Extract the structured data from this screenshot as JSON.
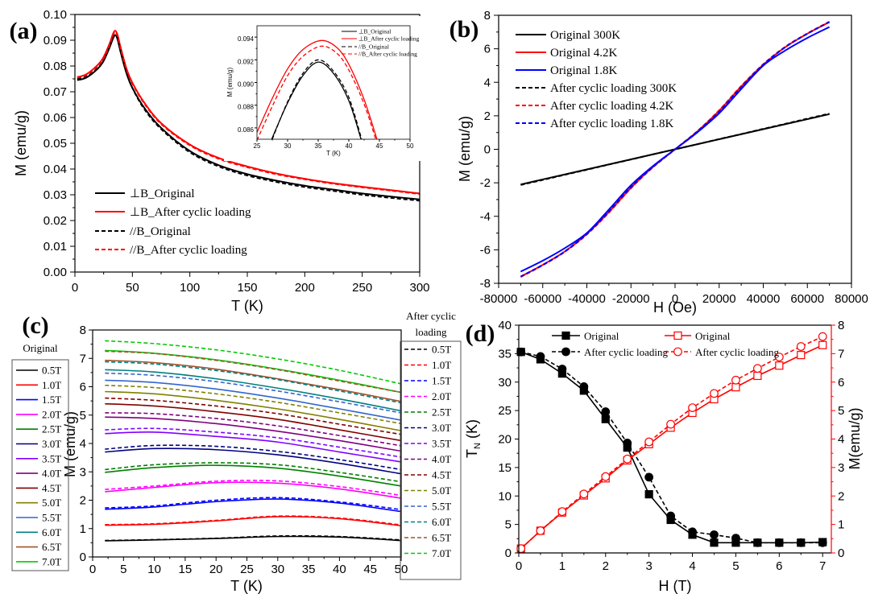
{
  "chart_data": [
    {
      "type": "line",
      "panel_label": "(a)",
      "xlabel": "T (K)",
      "ylabel": "M (emu/g)",
      "xlim": [
        0,
        300
      ],
      "ylim": [
        0,
        0.1
      ],
      "xticks": [
        "0",
        "50",
        "100",
        "150",
        "200",
        "250",
        "300"
      ],
      "yticks": [
        "0.00",
        "0.01",
        "0.02",
        "0.03",
        "0.04",
        "0.05",
        "0.06",
        "0.07",
        "0.08",
        "0.09",
        "0.10"
      ],
      "grid": false,
      "legend_position": "bottom-left",
      "series": [
        {
          "name": "⊥B_Original",
          "color": "#000000",
          "style": "solid",
          "x": [
            2,
            10,
            20,
            25,
            30,
            33,
            35,
            37,
            40,
            45,
            50,
            60,
            75,
            100,
            125,
            150,
            175,
            200,
            225,
            250,
            275,
            300
          ],
          "y": [
            0.0745,
            0.0755,
            0.079,
            0.082,
            0.087,
            0.0905,
            0.092,
            0.0905,
            0.085,
            0.077,
            0.0715,
            0.064,
            0.056,
            0.047,
            0.0415,
            0.038,
            0.0355,
            0.0335,
            0.032,
            0.0305,
            0.0293,
            0.0282
          ]
        },
        {
          "name": "⊥B_After cyclic loading",
          "color": "#ff0000",
          "style": "solid",
          "x": [
            2,
            10,
            20,
            25,
            30,
            33,
            35,
            37,
            40,
            45,
            50,
            60,
            75,
            100,
            125,
            150,
            175,
            200,
            225,
            250,
            275,
            300
          ],
          "y": [
            0.0757,
            0.0768,
            0.0805,
            0.0835,
            0.0885,
            0.0923,
            0.0937,
            0.0922,
            0.0868,
            0.0788,
            0.0735,
            0.066,
            0.0578,
            0.0495,
            0.0443,
            0.041,
            0.0383,
            0.0362,
            0.0345,
            0.0331,
            0.0318,
            0.0305
          ]
        },
        {
          "name": "//B_Original",
          "color": "#000000",
          "style": "dash",
          "x": [
            2,
            10,
            20,
            25,
            30,
            33,
            35,
            37,
            40,
            45,
            50,
            60,
            75,
            100,
            125,
            150,
            175,
            200,
            225,
            250,
            275,
            300
          ],
          "y": [
            0.075,
            0.0758,
            0.0792,
            0.0822,
            0.0872,
            0.0907,
            0.092,
            0.0906,
            0.0852,
            0.0772,
            0.0715,
            0.0635,
            0.0555,
            0.0465,
            0.041,
            0.0375,
            0.035,
            0.033,
            0.0315,
            0.03,
            0.0288,
            0.0277
          ]
        },
        {
          "name": "//B_After cyclic loading",
          "color": "#ff0000",
          "style": "dash",
          "x": [
            2,
            10,
            20,
            25,
            30,
            33,
            35,
            37,
            40,
            45,
            50,
            60,
            75,
            100,
            125,
            150,
            175,
            200,
            225,
            250,
            275,
            300
          ],
          "y": [
            0.0755,
            0.0765,
            0.08,
            0.083,
            0.088,
            0.0918,
            0.0932,
            0.0918,
            0.0864,
            0.0785,
            0.0732,
            0.0657,
            0.0575,
            0.0492,
            0.044,
            0.0407,
            0.038,
            0.036,
            0.0343,
            0.0329,
            0.0316,
            0.0303
          ]
        }
      ],
      "inset": {
        "type": "line",
        "xlabel": "T (K)",
        "ylabel": "M (emu/g)",
        "xlim": [
          25,
          50
        ],
        "ylim": [
          0.085,
          0.095
        ],
        "xticks": [
          "25",
          "30",
          "35",
          "40",
          "45",
          "50"
        ],
        "yticks": [
          "0.086",
          "0.088",
          "0.090",
          "0.092",
          "0.094"
        ],
        "legend_position": "top-right",
        "series": [
          {
            "name": "⊥B_Original",
            "color": "#000000",
            "style": "solid",
            "x": [
              27.4,
              30,
              32.5,
              35,
              37.5,
              40,
              42
            ],
            "y": [
              0.085,
              0.0882,
              0.0906,
              0.0918,
              0.0908,
              0.0884,
              0.085
            ]
          },
          {
            "name": "⊥B_After cyclic loading",
            "color": "#ff0000",
            "style": "solid",
            "x": [
              25,
              27.5,
              30,
              32.5,
              35.5,
              38,
              40,
              42.5,
              44.6
            ],
            "y": [
              0.0856,
              0.0886,
              0.0912,
              0.0929,
              0.0937,
              0.0931,
              0.0916,
              0.0885,
              0.085
            ]
          },
          {
            "name": "//B_Original",
            "color": "#000000",
            "style": "dash",
            "x": [
              27.5,
              30,
              32.5,
              35,
              37.5,
              40,
              42.1
            ],
            "y": [
              0.085,
              0.0883,
              0.0908,
              0.092,
              0.091,
              0.0887,
              0.085
            ]
          },
          {
            "name": "//B_After cyclic loading",
            "color": "#ff0000",
            "style": "dash",
            "x": [
              25,
              27.5,
              30,
              32.5,
              35.5,
              38,
              40,
              42.5,
              44.4
            ],
            "y": [
              0.0849,
              0.0879,
              0.0906,
              0.0923,
              0.0932,
              0.0926,
              0.0911,
              0.0881,
              0.085
            ]
          }
        ]
      }
    },
    {
      "type": "line",
      "panel_label": "(b)",
      "xlabel": "H (Oe)",
      "ylabel": "M (emu/g)",
      "xlim": [
        -80000,
        80000
      ],
      "ylim": [
        -8,
        8
      ],
      "xticks": [
        "-80000",
        "-60000",
        "-40000",
        "-20000",
        "0",
        "20000",
        "40000",
        "60000",
        "80000"
      ],
      "yticks": [
        "-8",
        "-6",
        "-4",
        "-2",
        "0",
        "2",
        "4",
        "6",
        "8"
      ],
      "grid": false,
      "legend_position": "top-left",
      "series": [
        {
          "name": "Original 300K",
          "color": "#000000",
          "style": "solid",
          "x": [
            -70000,
            -60000,
            -50000,
            -40000,
            -30000,
            -20000,
            -10000,
            0,
            10000,
            20000,
            30000,
            40000,
            50000,
            60000,
            70000
          ],
          "y": [
            -2.1,
            -1.8,
            -1.5,
            -1.2,
            -0.9,
            -0.6,
            -0.3,
            0,
            0.3,
            0.6,
            0.9,
            1.2,
            1.5,
            1.8,
            2.1
          ]
        },
        {
          "name": "Original 4.2K",
          "color": "#ff0000",
          "style": "solid",
          "x": [
            -70000,
            -60000,
            -50000,
            -40000,
            -30000,
            -20000,
            -10000,
            0,
            10000,
            20000,
            30000,
            40000,
            50000,
            60000,
            70000
          ],
          "y": [
            -7.6,
            -6.9,
            -6.1,
            -5.05,
            -3.75,
            -2.3,
            -1.05,
            0,
            1.05,
            2.3,
            3.75,
            5.05,
            6.1,
            6.9,
            7.6
          ]
        },
        {
          "name": "Original 1.8K",
          "color": "#0000ff",
          "style": "solid",
          "x": [
            -70000,
            -60000,
            -50000,
            -40000,
            -30000,
            -20000,
            -10000,
            0,
            10000,
            20000,
            30000,
            40000,
            50000,
            60000,
            70000
          ],
          "y": [
            -7.3,
            -6.65,
            -5.9,
            -5.0,
            -3.6,
            -2.15,
            -1.0,
            0,
            1.0,
            2.15,
            3.6,
            5.0,
            5.9,
            6.65,
            7.3
          ]
        },
        {
          "name": "After cyclic loading 300K",
          "color": "#000000",
          "style": "dash",
          "x": [
            -70000,
            -60000,
            -50000,
            -40000,
            -30000,
            -20000,
            -10000,
            0,
            10000,
            20000,
            30000,
            40000,
            50000,
            60000,
            70000
          ],
          "y": [
            -2.13,
            -1.83,
            -1.52,
            -1.22,
            -0.91,
            -0.61,
            -0.3,
            0,
            0.3,
            0.61,
            0.91,
            1.22,
            1.52,
            1.83,
            2.13
          ]
        },
        {
          "name": "After cyclic loading 4.2K",
          "color": "#ff0000",
          "style": "dash",
          "x": [
            -70000,
            -60000,
            -50000,
            -40000,
            -30000,
            -20000,
            -10000,
            0,
            10000,
            20000,
            30000,
            40000,
            50000,
            60000,
            70000
          ],
          "y": [
            -7.62,
            -6.92,
            -6.12,
            -5.08,
            -3.78,
            -2.33,
            -1.07,
            0,
            1.07,
            2.33,
            3.78,
            5.08,
            6.12,
            6.92,
            7.62
          ]
        },
        {
          "name": "After cyclic loading 1.8K",
          "color": "#0000ff",
          "style": "dash",
          "x": [
            -70000,
            -60000,
            -50000,
            -40000,
            -30000,
            -20000,
            -10000,
            0,
            10000,
            20000,
            30000,
            40000,
            50000,
            60000,
            70000
          ],
          "y": [
            -7.6,
            -6.9,
            -6.1,
            -5.05,
            -3.7,
            -2.25,
            -1.05,
            0,
            1.05,
            2.25,
            3.7,
            5.05,
            6.1,
            6.9,
            7.6
          ]
        }
      ]
    },
    {
      "type": "line",
      "panel_label": "(c)",
      "xlabel": "T (K)",
      "ylabel": "M (emu/g)",
      "xlim": [
        0,
        50
      ],
      "ylim": [
        0,
        8
      ],
      "xticks": [
        "0",
        "5",
        "10",
        "15",
        "20",
        "25",
        "30",
        "35",
        "40",
        "45",
        "50"
      ],
      "yticks": [
        "0",
        "1",
        "2",
        "3",
        "4",
        "5",
        "6",
        "7",
        "8"
      ],
      "grid": false,
      "legend_left_title": "Original",
      "legend_right_title_line1": "After cyclic",
      "legend_right_title_line2": "loading",
      "x": [
        2,
        10,
        20,
        30,
        40,
        50
      ],
      "fields": [
        "0.5T",
        "1.0T",
        "1.5T",
        "2.0T",
        "2.5T",
        "3.0T",
        "3.5T",
        "4.0T",
        "4.5T",
        "5.0T",
        "5.5T",
        "6.0T",
        "6.5T",
        "7.0T"
      ],
      "colors": [
        "#000000",
        "#ff0000",
        "#0000ff",
        "#ff00ff",
        "#008000",
        "#000080",
        "#8000ff",
        "#800080",
        "#800000",
        "#808000",
        "#3366cc",
        "#008080",
        "#a0522d",
        "#00cc00"
      ],
      "original": [
        [
          0.57,
          0.6,
          0.65,
          0.72,
          0.7,
          0.58
        ],
        [
          1.12,
          1.15,
          1.27,
          1.42,
          1.35,
          1.1
        ],
        [
          1.68,
          1.76,
          1.95,
          2.04,
          1.9,
          1.6
        ],
        [
          2.3,
          2.45,
          2.62,
          2.6,
          2.4,
          2.07
        ],
        [
          2.98,
          3.15,
          3.23,
          3.13,
          2.85,
          2.5
        ],
        [
          3.7,
          3.82,
          3.78,
          3.6,
          3.3,
          2.93
        ],
        [
          4.35,
          4.4,
          4.25,
          4.05,
          3.7,
          3.35
        ],
        [
          4.93,
          4.88,
          4.7,
          4.43,
          4.1,
          3.73
        ],
        [
          5.4,
          5.32,
          5.12,
          4.85,
          4.48,
          4.1
        ],
        [
          5.83,
          5.75,
          5.52,
          5.22,
          4.85,
          4.45
        ],
        [
          6.23,
          6.15,
          5.92,
          5.6,
          5.22,
          4.82
        ],
        [
          6.6,
          6.52,
          6.28,
          5.95,
          5.57,
          5.15
        ],
        [
          6.93,
          6.85,
          6.62,
          6.28,
          5.9,
          5.48
        ],
        [
          7.28,
          7.18,
          6.95,
          6.62,
          6.23,
          5.8
        ]
      ],
      "after_cyclic_loading": [
        [
          0.58,
          0.61,
          0.66,
          0.74,
          0.72,
          0.6
        ],
        [
          1.14,
          1.17,
          1.29,
          1.44,
          1.37,
          1.13
        ],
        [
          1.73,
          1.8,
          2.0,
          2.09,
          1.94,
          1.67
        ],
        [
          2.38,
          2.5,
          2.67,
          2.68,
          2.48,
          2.17
        ],
        [
          3.08,
          3.25,
          3.32,
          3.25,
          2.98,
          2.65
        ],
        [
          3.8,
          3.93,
          3.9,
          3.72,
          3.43,
          3.08
        ],
        [
          4.48,
          4.53,
          4.4,
          4.2,
          3.87,
          3.52
        ],
        [
          5.08,
          5.05,
          4.88,
          4.62,
          4.28,
          3.92
        ],
        [
          5.6,
          5.52,
          5.32,
          5.05,
          4.68,
          4.32
        ],
        [
          6.05,
          5.97,
          5.75,
          5.45,
          5.08,
          4.7
        ],
        [
          6.48,
          6.4,
          6.18,
          5.85,
          5.47,
          5.08
        ],
        [
          6.88,
          6.8,
          6.57,
          6.25,
          5.85,
          5.43
        ],
        [
          7.25,
          7.17,
          6.93,
          6.6,
          6.2,
          5.8
        ],
        [
          7.62,
          7.52,
          7.3,
          6.98,
          6.58,
          6.1
        ]
      ]
    },
    {
      "type": "line",
      "panel_label": "(d)",
      "xlabel": "H (T)",
      "ylabel_left": "T",
      "ylabel_left_sub": "N",
      "ylabel_left_unit": " (K)",
      "ylabel_right": "M(emu/g)",
      "xlim": [
        0,
        7.2
      ],
      "ylim_left": [
        0,
        40
      ],
      "ylim_right": [
        0,
        8
      ],
      "xticks": [
        "0",
        "1",
        "2",
        "3",
        "4",
        "5",
        "6",
        "7"
      ],
      "yticks_left": [
        "0",
        "5",
        "10",
        "15",
        "20",
        "25",
        "30",
        "35",
        "40"
      ],
      "yticks_right": [
        "0",
        "1",
        "2",
        "3",
        "4",
        "5",
        "6",
        "7",
        "8"
      ],
      "right_axis_color": "#ff0000",
      "grid": false,
      "x": [
        0.05,
        0.5,
        1,
        1.5,
        2,
        2.5,
        3,
        3.5,
        4,
        4.5,
        5,
        5.5,
        6,
        6.5,
        7
      ],
      "series": [
        {
          "name": "Original",
          "axis": "left",
          "color": "#000000",
          "style": "solid",
          "marker": "filled-square",
          "y": [
            35.3,
            34,
            31.5,
            28.5,
            23.5,
            18.5,
            10.3,
            5.8,
            3.2,
            1.8,
            1.8,
            1.8,
            1.8,
            1.8,
            1.9
          ]
        },
        {
          "name": "After cyclic loading",
          "axis": "left",
          "color": "#000000",
          "style": "dash",
          "marker": "filled-circle",
          "y": [
            35.3,
            34.5,
            32.3,
            29.2,
            24.8,
            19.3,
            13.3,
            6.5,
            3.7,
            3.2,
            2.6,
            1.8,
            1.8,
            1.8,
            1.8
          ]
        },
        {
          "name": "Original",
          "axis": "right",
          "color": "#ff0000",
          "style": "solid",
          "marker": "open-square",
          "y": [
            0.15,
            0.78,
            1.42,
            2.02,
            2.62,
            3.25,
            3.82,
            4.4,
            4.92,
            5.4,
            5.82,
            6.22,
            6.58,
            6.95,
            7.3
          ]
        },
        {
          "name": "After cyclic loading",
          "axis": "right",
          "color": "#ff0000",
          "style": "dash",
          "marker": "open-circle",
          "y": [
            0.15,
            0.78,
            1.45,
            2.07,
            2.68,
            3.3,
            3.9,
            4.52,
            5.1,
            5.6,
            6.07,
            6.48,
            6.88,
            7.25,
            7.6
          ]
        }
      ]
    }
  ]
}
